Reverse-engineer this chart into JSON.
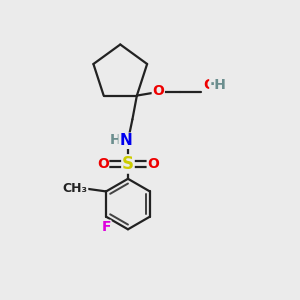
{
  "bg_color": "#ebebeb",
  "atom_colors": {
    "C": "#222222",
    "H": "#6b8e8e",
    "N": "#0000ee",
    "O": "#ee0000",
    "S": "#cccc00",
    "F": "#dd00dd"
  },
  "bond_color": "#222222",
  "bond_width": 1.6,
  "font_size_atom": 10,
  "figsize": [
    3.0,
    3.0
  ],
  "dpi": 100,
  "xlim": [
    0,
    10
  ],
  "ylim": [
    0,
    10
  ]
}
